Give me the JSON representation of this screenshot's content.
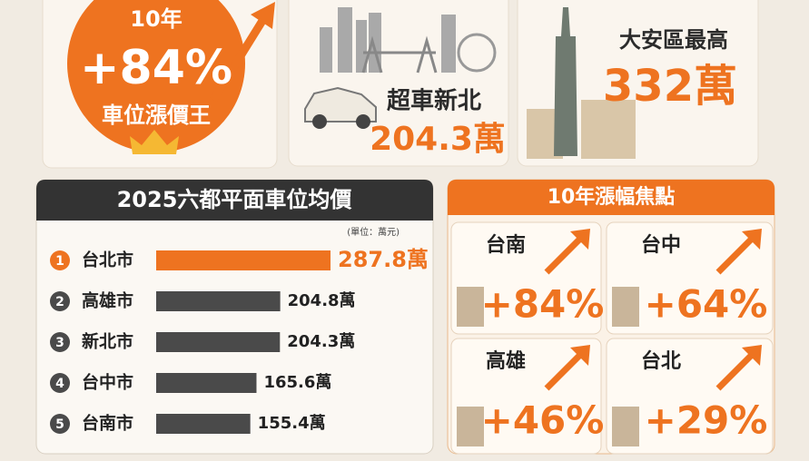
{
  "cards": [
    {
      "line1": "10年",
      "big": "+84%",
      "line2": "車位漲價王"
    },
    {
      "line1": "超車新北",
      "big": "204.3萬"
    },
    {
      "line1": "大安區最高",
      "big": "332萬"
    }
  ],
  "chart_data": {
    "type": "bar",
    "title": "2025六都平面車位均價",
    "subtitle": "(單位：萬元)",
    "ranks": [
      "1",
      "2",
      "3",
      "4",
      "5"
    ],
    "categories": [
      "台北市",
      "高雄市",
      "新北市",
      "台中市",
      "台南市"
    ],
    "values": [
      287.8,
      204.8,
      204.3,
      165.6,
      155.4
    ],
    "value_labels": [
      "287.8萬",
      "204.8萬",
      "204.3萬",
      "165.6萬",
      "155.4萬"
    ],
    "colors": [
      "#ee7320",
      "#4a4a4a",
      "#4a4a4a",
      "#4a4a4a",
      "#4a4a4a"
    ]
  },
  "focus": {
    "title": "10年漲幅焦點",
    "items": [
      {
        "city": "台南",
        "change": "+84%"
      },
      {
        "city": "台中",
        "change": "+64%"
      },
      {
        "city": "高雄",
        "change": "+46%"
      },
      {
        "city": "台北",
        "change": "+29%"
      }
    ]
  }
}
